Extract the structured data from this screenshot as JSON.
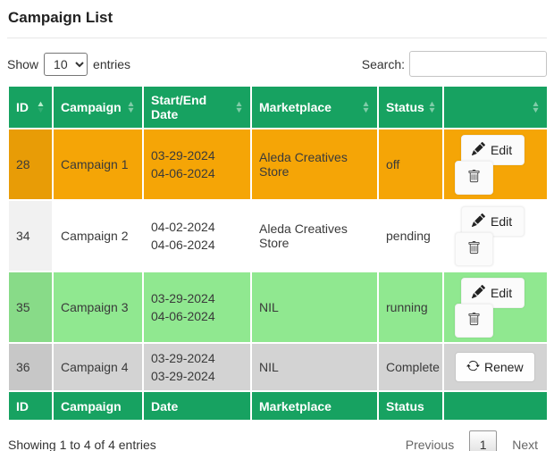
{
  "page": {
    "title": "Campaign List"
  },
  "controls": {
    "show_label": "Show",
    "entries_label": "entries",
    "page_length_selected": "10",
    "search_label": "Search:",
    "search_value": ""
  },
  "colors": {
    "header_green": "#17a261",
    "row_off_orange": "#f5a506",
    "row_pending_white": "#ffffff",
    "row_running_green": "#90e890",
    "row_complete_gray": "#d3d3d3",
    "header_text": "#ffffff"
  },
  "icons": {
    "edit": "pencil-icon",
    "delete": "trash-icon",
    "renew": "refresh-icon",
    "sort_up": "caret-up-icon",
    "sort_down": "caret-down-icon",
    "select_chevron": "chevron-down-icon"
  },
  "buttons": {
    "edit_label": "Edit",
    "renew_label": "Renew"
  },
  "table": {
    "headers": [
      {
        "label": "ID",
        "sort": "asc"
      },
      {
        "label": "Campaign",
        "sort": "none"
      },
      {
        "label": "Start/End Date",
        "sort": "none"
      },
      {
        "label": "Marketplace",
        "sort": "none"
      },
      {
        "label": "Status",
        "sort": "none"
      },
      {
        "label": "",
        "sort": "none"
      }
    ],
    "footers": [
      "ID",
      "Campaign",
      "Date",
      "Marketplace",
      "Status",
      ""
    ],
    "rows": [
      {
        "id": "28",
        "campaign": "Campaign 1",
        "start_date": "03-29-2024",
        "end_date": "04-06-2024",
        "marketplace": "Aleda Creatives Store",
        "status": "off",
        "color": "#f5a506",
        "tall": true,
        "actions": [
          "edit",
          "delete"
        ]
      },
      {
        "id": "34",
        "campaign": "Campaign 2",
        "start_date": "04-02-2024",
        "end_date": "04-06-2024",
        "marketplace": "Aleda Creatives Store",
        "status": "pending",
        "color": "#ffffff",
        "tall": true,
        "actions": [
          "edit",
          "delete"
        ]
      },
      {
        "id": "35",
        "campaign": "Campaign 3",
        "start_date": "03-29-2024",
        "end_date": "04-06-2024",
        "marketplace": "NIL",
        "status": "running",
        "color": "#90e890",
        "tall": true,
        "actions": [
          "edit",
          "delete"
        ]
      },
      {
        "id": "36",
        "campaign": "Campaign 4",
        "start_date": "03-29-2024",
        "end_date": "03-29-2024",
        "marketplace": "NIL",
        "status": "Complete",
        "color": "#d3d3d3",
        "tall": false,
        "actions": [
          "renew"
        ]
      }
    ]
  },
  "footer": {
    "info": "Showing 1 to 4 of 4 entries",
    "previous_label": "Previous",
    "current_page": "1",
    "next_label": "Next"
  }
}
